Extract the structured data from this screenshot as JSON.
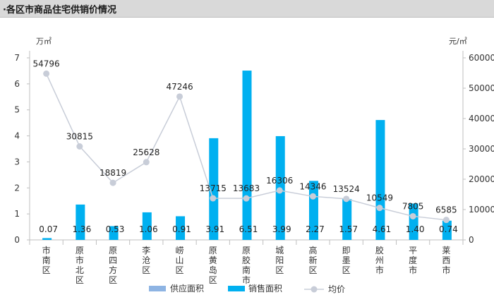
{
  "header": {
    "title": "·各区市商品住宅供销价情况"
  },
  "chart_data": {
    "type": "bar",
    "categories": [
      "市南区",
      "原市北区",
      "原四方区",
      "李沧区",
      "崂山区",
      "原黄岛区",
      "原胶南市",
      "城阳区",
      "高新区",
      "即墨区",
      "胶州市",
      "平度市",
      "莱西市"
    ],
    "left_axis": {
      "unit": "万㎡",
      "ylim": [
        0,
        7
      ],
      "ticks": [
        0,
        1,
        2,
        3,
        4,
        5,
        6,
        7
      ]
    },
    "right_axis": {
      "unit": "元/㎡",
      "ylim": [
        0,
        60000
      ],
      "ticks": [
        0,
        10000,
        20000,
        30000,
        40000,
        50000,
        60000
      ]
    },
    "series": [
      {
        "name": "供应面积",
        "type": "bar",
        "axis": "left",
        "color": "#8eb4e3",
        "values": [
          0,
          0,
          0,
          0,
          0,
          0,
          0,
          0,
          0,
          0,
          0,
          0,
          0
        ]
      },
      {
        "name": "销售面积",
        "type": "bar",
        "axis": "left",
        "color": "#00b0f0",
        "values": [
          0.07,
          1.36,
          0.53,
          1.06,
          0.91,
          3.91,
          6.51,
          3.99,
          2.27,
          1.57,
          4.61,
          1.4,
          0.74
        ],
        "labels": [
          "0.07",
          "1.36",
          "0.53",
          "1.06",
          "0.91",
          "3.91",
          "6.51",
          "3.99",
          "2.27",
          "1.57",
          "4.61",
          "1.40",
          "0.74"
        ]
      },
      {
        "name": "均价",
        "type": "line",
        "axis": "right",
        "color": "#c8cdd8",
        "values": [
          54796,
          30815,
          18819,
          25628,
          47246,
          13715,
          13683,
          16306,
          14346,
          13524,
          10549,
          7805,
          6585
        ],
        "labels": [
          "54796",
          "30815",
          "18819",
          "25628",
          "47246",
          "13715",
          "13683",
          "16306",
          "14346",
          "13524",
          "10549",
          "7805",
          "6585"
        ]
      }
    ],
    "grid": false,
    "legend_position": "bottom"
  }
}
